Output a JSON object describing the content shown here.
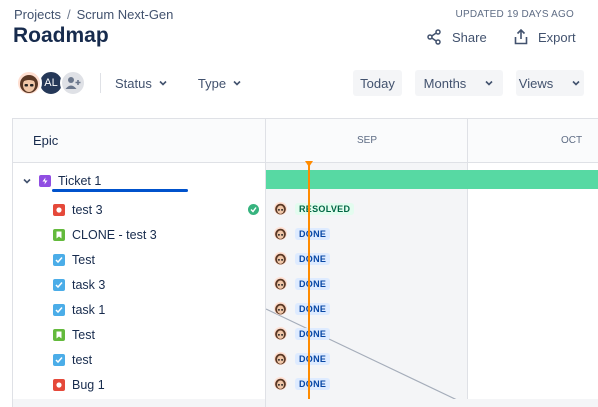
{
  "breadcrumb": {
    "projects": "Projects",
    "separator": "/",
    "project": "Scrum Next-Gen"
  },
  "updated": "UPDATED 19 DAYS AGO",
  "page_title": "Roadmap",
  "header_actions": {
    "share": "Share",
    "export": "Export"
  },
  "filters": {
    "avatar_initials": "AL",
    "status": "Status",
    "type": "Type"
  },
  "toolbar": {
    "today": "Today",
    "months": "Months",
    "views": "Views"
  },
  "grid": {
    "epic_column": "Epic",
    "months": [
      "SEP",
      "OCT"
    ]
  },
  "epic": {
    "label": "Ticket 1",
    "progress": 1.0
  },
  "children": [
    {
      "label": "test 3",
      "type": "bug",
      "status": "RESOLVED",
      "resolved": true
    },
    {
      "label": "CLONE - test 3",
      "type": "story",
      "status": "DONE"
    },
    {
      "label": "Test",
      "type": "task",
      "status": "DONE"
    },
    {
      "label": "task 3",
      "type": "task",
      "status": "DONE"
    },
    {
      "label": "task 1",
      "type": "task",
      "status": "DONE"
    },
    {
      "label": "Test",
      "type": "story",
      "status": "DONE"
    },
    {
      "label": "test",
      "type": "task",
      "status": "DONE"
    },
    {
      "label": "Bug 1",
      "type": "bug",
      "status": "DONE"
    }
  ],
  "colors": {
    "epic_bar": "#57d9a3",
    "today_line": "#ff8b00",
    "bug": "#e5493a",
    "story": "#63ba3c",
    "task": "#4bade8",
    "epic": "#904ee2"
  }
}
